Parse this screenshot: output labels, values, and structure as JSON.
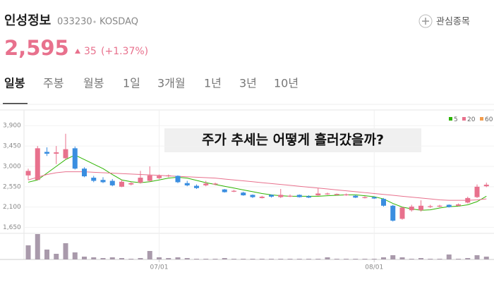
{
  "header": {
    "name": "인성정보",
    "code": "033230",
    "market": "KOSDAQ",
    "watch_button": "관심종목"
  },
  "price": {
    "current": "2,595",
    "change": "35",
    "change_percent": "(+1.37%)"
  },
  "tabs": [
    "일봉",
    "주봉",
    "월봉",
    "1일",
    "3개월",
    "1년",
    "3년",
    "10년"
  ],
  "selected_tab": 0,
  "chart_data": {
    "type": "candlestick",
    "annotation": "주가 추세는 어떻게 흘러갔을까?",
    "up_color": "#e8718d",
    "down_color": "#3a8ee0",
    "candles": {
      "open": [
        2800,
        2700,
        3320,
        3280,
        3180,
        3400,
        2950,
        2750,
        2700,
        2680,
        2550,
        2600,
        2640,
        2680,
        2740,
        2780,
        2790,
        2630,
        2570,
        2580,
        2600,
        2490,
        2440,
        2420,
        2370,
        2300,
        2370,
        2320,
        2330,
        2370,
        2340,
        2360,
        2380,
        2370,
        2360,
        2350,
        2300,
        2320,
        2280,
        2130,
        1840,
        2030,
        2030,
        2100,
        2110,
        2150,
        2130,
        2200,
        2320,
        2560
      ],
      "high": [
        2950,
        3450,
        3420,
        3450,
        3720,
        3440,
        2980,
        2790,
        2760,
        2720,
        2700,
        2650,
        2900,
        3000,
        2820,
        2820,
        2800,
        2680,
        2600,
        2680,
        2640,
        2500,
        2480,
        2440,
        2380,
        2350,
        2380,
        2500,
        2380,
        2380,
        2360,
        2520,
        2420,
        2400,
        2400,
        2370,
        2340,
        2330,
        2300,
        2150,
        2100,
        2150,
        2250,
        2150,
        2150,
        2160,
        2180,
        2330,
        2600,
        2640
      ],
      "low": [
        2700,
        2700,
        3230,
        3050,
        3150,
        2930,
        2760,
        2650,
        2630,
        2560,
        2540,
        2580,
        2620,
        2660,
        2720,
        2760,
        2630,
        2560,
        2500,
        2560,
        2580,
        2420,
        2430,
        2350,
        2300,
        2290,
        2310,
        2300,
        2320,
        2310,
        2300,
        2350,
        2370,
        2360,
        2350,
        2300,
        2290,
        2280,
        2110,
        1780,
        1820,
        2000,
        2000,
        2080,
        2100,
        2090,
        2120,
        2180,
        2300,
        2540
      ],
      "close": [
        2900,
        3400,
        3280,
        3310,
        3380,
        2950,
        2780,
        2680,
        2650,
        2580,
        2660,
        2630,
        2750,
        2800,
        2790,
        2800,
        2650,
        2580,
        2520,
        2620,
        2620,
        2430,
        2460,
        2360,
        2320,
        2330,
        2330,
        2370,
        2350,
        2320,
        2310,
        2400,
        2400,
        2390,
        2380,
        2310,
        2320,
        2290,
        2130,
        1800,
        2090,
        2110,
        2130,
        2120,
        2130,
        2100,
        2160,
        2300,
        2550,
        2595
      ]
    },
    "volume": {
      "color": "#a99aab",
      "lim": [
        0,
        40
      ],
      "values": [
        20,
        36,
        14,
        8,
        23,
        10,
        4,
        3,
        2,
        3,
        2,
        1,
        2,
        12,
        3,
        2,
        3,
        2,
        1,
        1,
        1,
        2,
        1,
        1,
        1,
        1,
        1,
        1,
        1,
        1,
        1,
        1,
        3,
        1,
        1,
        1,
        1,
        1,
        3,
        6,
        3,
        1,
        2,
        1,
        1,
        7,
        1,
        2,
        6,
        4
      ]
    },
    "series": [
      {
        "name": "5",
        "color": "#2db400",
        "values": [
          2650,
          2700,
          2850,
          3000,
          3150,
          3250,
          3150,
          3050,
          2950,
          2820,
          2700,
          2660,
          2640,
          2660,
          2700,
          2740,
          2760,
          2740,
          2690,
          2640,
          2600,
          2560,
          2520,
          2480,
          2440,
          2400,
          2370,
          2350,
          2340,
          2340,
          2340,
          2340,
          2350,
          2360,
          2370,
          2370,
          2350,
          2330,
          2280,
          2180,
          2100,
          2060,
          2030,
          2040,
          2080,
          2110,
          2120,
          2150,
          2220,
          2340
        ]
      },
      {
        "name": "20",
        "color": "#e8718d",
        "values": [
          2700,
          2760,
          2820,
          2860,
          2880,
          2880,
          2880,
          2870,
          2860,
          2850,
          2840,
          2830,
          2820,
          2810,
          2800,
          2790,
          2780,
          2770,
          2760,
          2750,
          2740,
          2720,
          2700,
          2680,
          2660,
          2640,
          2620,
          2600,
          2580,
          2560,
          2540,
          2520,
          2500,
          2480,
          2460,
          2440,
          2420,
          2400,
          2380,
          2360,
          2340,
          2320,
          2300,
          2280,
          2260,
          2250,
          2250,
          2250,
          2260,
          2280
        ]
      },
      {
        "name": "60",
        "color": "#f39c4b",
        "values": [
          null,
          null,
          null,
          null,
          null,
          null,
          null,
          null,
          null,
          null,
          null,
          null,
          null,
          null,
          null,
          null,
          null,
          null,
          null,
          null,
          null,
          null,
          null,
          null,
          null,
          null,
          null,
          null,
          null,
          null,
          null,
          null,
          null,
          null,
          null,
          null,
          null,
          null,
          null,
          null,
          null,
          null,
          null,
          null,
          null,
          null,
          null,
          null,
          null,
          null
        ]
      }
    ],
    "ylim": [
      1550,
      4200
    ],
    "yticks": [
      {
        "value": 1650,
        "label": "1,650"
      },
      {
        "value": 2100,
        "label": "2,100"
      },
      {
        "value": 2550,
        "label": "2,550"
      },
      {
        "value": 3000,
        "label": "3,000"
      },
      {
        "value": 3450,
        "label": "3,450"
      },
      {
        "value": 3900,
        "label": "3,900"
      }
    ],
    "xticks": [
      {
        "value": 14,
        "label": "07/01"
      },
      {
        "value": 37,
        "label": "08/01"
      }
    ]
  }
}
